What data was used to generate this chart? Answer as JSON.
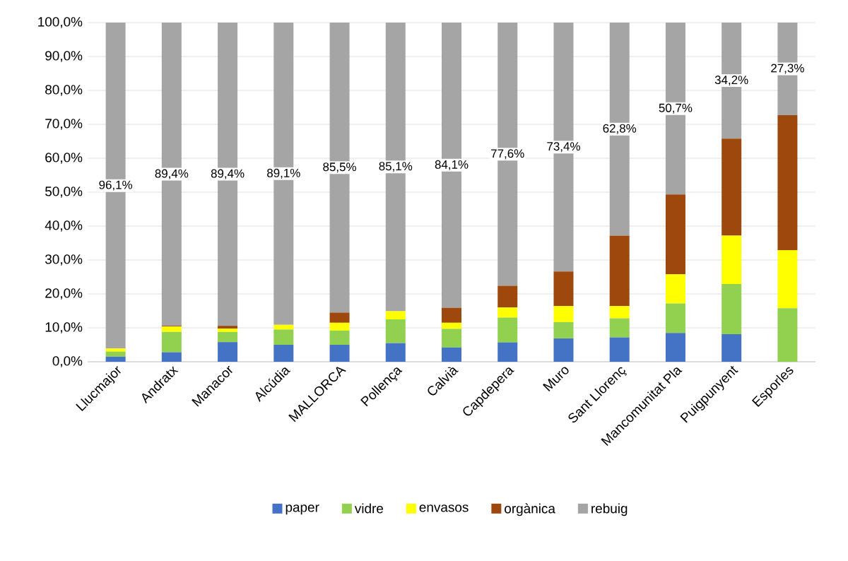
{
  "chart_data": {
    "type": "bar",
    "stacked": true,
    "categories": [
      "Llucmajor",
      "Andratx",
      "Manacor",
      "Alcúdia",
      "MALLORCA",
      "Pollença",
      "Calvià",
      "Capdepera",
      "Muro",
      "Sant Llorenç",
      "Mancomunitat Pla",
      "Puigpunyent",
      "Esporles"
    ],
    "series": [
      {
        "name": "paper",
        "color": "#4472c4",
        "values": [
          1.5,
          2.8,
          5.8,
          5.0,
          5.0,
          5.5,
          4.2,
          5.7,
          6.9,
          7.2,
          8.5,
          8.1,
          0
        ]
      },
      {
        "name": "vidre",
        "color": "#92d050",
        "values": [
          1.5,
          6.0,
          3.0,
          4.5,
          4.2,
          7.0,
          5.5,
          7.3,
          4.8,
          5.6,
          8.7,
          14.8,
          15.8
        ]
      },
      {
        "name": "envasos",
        "color": "#ffff00",
        "values": [
          0.9,
          1.6,
          1.0,
          1.4,
          2.3,
          2.4,
          1.8,
          3.0,
          4.7,
          3.6,
          8.6,
          14.3,
          17.1
        ]
      },
      {
        "name": "orgànica",
        "color": "#9e480e",
        "values": [
          0,
          0.2,
          0.8,
          0,
          3.0,
          0,
          4.4,
          6.4,
          10.2,
          20.8,
          23.5,
          28.6,
          39.8
        ]
      },
      {
        "name": "rebuig",
        "color": "#a5a5a5",
        "values": [
          96.1,
          89.4,
          89.4,
          89.1,
          85.5,
          85.1,
          84.1,
          77.6,
          73.4,
          62.8,
          50.7,
          34.2,
          27.3
        ],
        "value_labels": [
          "96,1%",
          "89,4%",
          "89,4%",
          "89,1%",
          "85,5%",
          "85,1%",
          "84,1%",
          "77,6%",
          "73,4%",
          "62,8%",
          "50,7%",
          "34,2%",
          "27,3%"
        ]
      }
    ],
    "ylim": [
      0,
      100
    ],
    "yticks": [
      {
        "value": 0,
        "label": "0,0%"
      },
      {
        "value": 10,
        "label": "10,0%"
      },
      {
        "value": 20,
        "label": "20,0%"
      },
      {
        "value": 30,
        "label": "30,0%"
      },
      {
        "value": 40,
        "label": "40,0%"
      },
      {
        "value": 50,
        "label": "50,0%"
      },
      {
        "value": 60,
        "label": "60,0%"
      },
      {
        "value": 70,
        "label": "70,0%"
      },
      {
        "value": 80,
        "label": "80,0%"
      },
      {
        "value": 90,
        "label": "90,0%"
      },
      {
        "value": 100,
        "label": "100,0%"
      }
    ],
    "grid": "y",
    "legend": "bottom"
  }
}
